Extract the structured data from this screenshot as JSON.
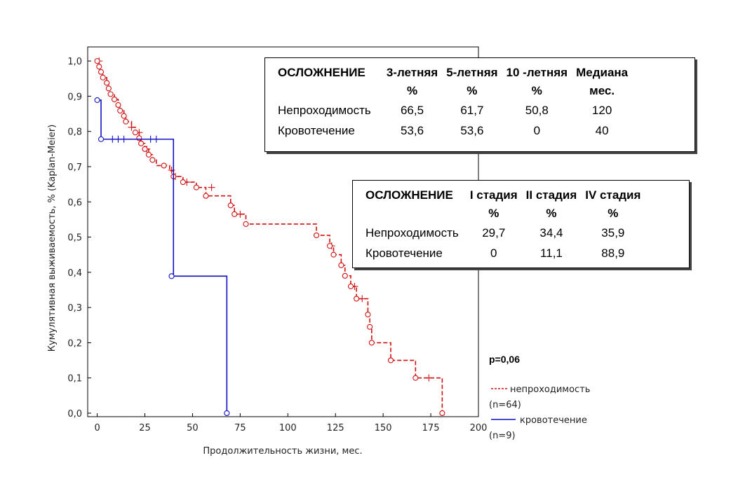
{
  "chart_data": {
    "type": "line",
    "subtype": "kaplan-meier-step",
    "xlabel": "Продолжительность жизни, мес.",
    "ylabel": "Кумулятивная выживаемость, % (Kaplan-Meier)",
    "xlim": [
      -5,
      200
    ],
    "ylim": [
      -0.01,
      1.04
    ],
    "xticks": [
      0,
      25,
      50,
      75,
      100,
      125,
      150,
      175,
      200
    ],
    "yticks": [
      "0,0",
      "0,1",
      "0,2",
      "0,3",
      "0,4",
      "0,5",
      "0,6",
      "0,7",
      "0,8",
      "0,9",
      "1,0"
    ],
    "grid": false,
    "legend_position": "bottom-right",
    "series": [
      {
        "name": "непроходимость",
        "color": "#d01010",
        "style": "dashed",
        "n_label": "(n=64)",
        "step_x": [
          0,
          1,
          2,
          3,
          5,
          6,
          7,
          9,
          11,
          12,
          14,
          15,
          18,
          20,
          22,
          23,
          25,
          27,
          29,
          31,
          35,
          38,
          40,
          45,
          52,
          57,
          63,
          70,
          72,
          78,
          115,
          122,
          124,
          128,
          130,
          133,
          136,
          142,
          143,
          144,
          154,
          167,
          181
        ],
        "step_y": [
          1.0,
          0.984,
          0.969,
          0.953,
          0.938,
          0.922,
          0.906,
          0.891,
          0.875,
          0.859,
          0.844,
          0.828,
          0.812,
          0.797,
          0.781,
          0.766,
          0.75,
          0.734,
          0.719,
          0.703,
          0.703,
          0.688,
          0.672,
          0.656,
          0.641,
          0.617,
          0.617,
          0.59,
          0.565,
          0.537,
          0.505,
          0.475,
          0.45,
          0.42,
          0.39,
          0.36,
          0.325,
          0.28,
          0.245,
          0.2,
          0.15,
          0.1,
          0.0
        ],
        "event_circles": [
          [
            0,
            1.0
          ],
          [
            1,
            0.984
          ],
          [
            2,
            0.969
          ],
          [
            3,
            0.953
          ],
          [
            5,
            0.938
          ],
          [
            6,
            0.922
          ],
          [
            7,
            0.906
          ],
          [
            9,
            0.891
          ],
          [
            11,
            0.875
          ],
          [
            12,
            0.859
          ],
          [
            14,
            0.844
          ],
          [
            15,
            0.828
          ],
          [
            20,
            0.797
          ],
          [
            22,
            0.781
          ],
          [
            23,
            0.766
          ],
          [
            25,
            0.75
          ],
          [
            27,
            0.734
          ],
          [
            29,
            0.719
          ],
          [
            35,
            0.703
          ],
          [
            40,
            0.672
          ],
          [
            45,
            0.656
          ],
          [
            52,
            0.641
          ],
          [
            57,
            0.617
          ],
          [
            70,
            0.59
          ],
          [
            72,
            0.565
          ],
          [
            78,
            0.537
          ],
          [
            115,
            0.505
          ],
          [
            122,
            0.475
          ],
          [
            124,
            0.45
          ],
          [
            128,
            0.42
          ],
          [
            130,
            0.39
          ],
          [
            133,
            0.36
          ],
          [
            136,
            0.325
          ],
          [
            142,
            0.28
          ],
          [
            143,
            0.245
          ],
          [
            144,
            0.2
          ],
          [
            154,
            0.15
          ],
          [
            167,
            0.1
          ],
          [
            181,
            0.0
          ]
        ],
        "censored": [
          [
            1,
            1.0
          ],
          [
            18,
            0.812
          ],
          [
            22,
            0.797
          ],
          [
            26,
            0.75
          ],
          [
            39,
            0.69
          ],
          [
            41,
            0.672
          ],
          [
            47,
            0.656
          ],
          [
            60,
            0.641
          ],
          [
            75,
            0.565
          ],
          [
            123,
            0.475
          ],
          [
            135,
            0.36
          ],
          [
            139,
            0.325
          ],
          [
            174,
            0.1
          ]
        ]
      },
      {
        "name": "кровотечение",
        "color": "#1010c0",
        "style": "solid",
        "n_label": "(n=9)",
        "step_x": [
          0,
          2,
          39,
          40,
          68
        ],
        "step_y": [
          0.889,
          0.778,
          0.778,
          0.389,
          0.0
        ],
        "event_circles": [
          [
            0,
            0.889
          ],
          [
            2,
            0.778
          ],
          [
            39,
            0.389
          ],
          [
            68,
            0.0
          ]
        ],
        "censored": [
          [
            8,
            0.778
          ],
          [
            11,
            0.778
          ],
          [
            14,
            0.778
          ],
          [
            28,
            0.778
          ],
          [
            31,
            0.778
          ]
        ]
      }
    ],
    "annotation": "p=0,06"
  },
  "table_a": {
    "headers": [
      {
        "l1": "ОСЛОЖНЕНИЕ",
        "l2": ""
      },
      {
        "l1": "3-летняя",
        "l2": "%"
      },
      {
        "l1": "5-летняя",
        "l2": "%"
      },
      {
        "l1": "10 -летняя",
        "l2": "%"
      },
      {
        "l1": "Медиана",
        "l2": "мес."
      }
    ],
    "rows": [
      [
        "Непроходимость",
        "66,5",
        "61,7",
        "50,8",
        "120"
      ],
      [
        "Кровотечение",
        "53,6",
        "53,6",
        "0",
        "40"
      ]
    ]
  },
  "table_b": {
    "headers": [
      {
        "l1": "ОСЛОЖНЕНИЕ",
        "l2": ""
      },
      {
        "l1": "I стадия",
        "l2": "%"
      },
      {
        "l1": "II стадия",
        "l2": "%"
      },
      {
        "l1": "IV стадия",
        "l2": "%"
      }
    ],
    "rows": [
      [
        "Непроходимость",
        "29,7",
        "34,4",
        "35,9"
      ],
      [
        "Кровотечение",
        "0",
        "11,1",
        "88,9"
      ]
    ]
  }
}
